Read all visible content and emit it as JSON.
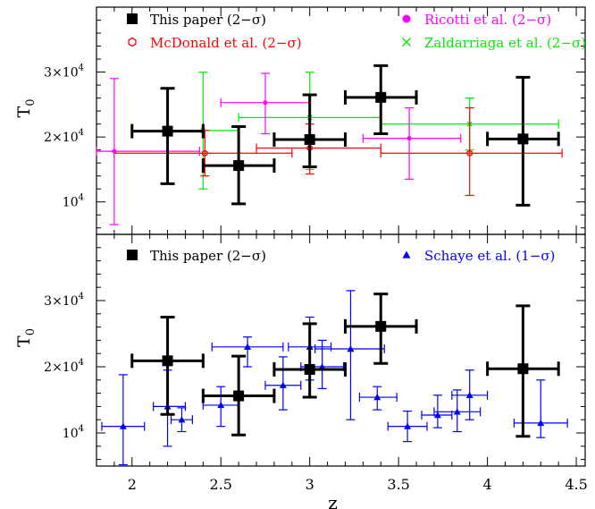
{
  "chart_data": [
    {
      "type": "scatter",
      "panel": "top",
      "ylabel_main": "T",
      "ylabel_sub": "0",
      "xlim": [
        1.8,
        4.55
      ],
      "ylim": [
        5000,
        40000
      ],
      "y_ticks": [
        {
          "value": 10000,
          "mant": "10",
          "exp": "4"
        },
        {
          "value": 20000,
          "mant": "2×10",
          "exp": "4"
        },
        {
          "value": 30000,
          "mant": "3×10",
          "exp": "4"
        }
      ],
      "legend": [
        {
          "label": "This paper (2−σ)",
          "color": "#000000",
          "marker": "square"
        },
        {
          "label": "Ricotti et al. (2−σ)",
          "color": "#ff00ff",
          "marker": "circle"
        },
        {
          "label": "McDonald et al. (2−σ)",
          "color": "#ff0000",
          "marker": "hexagon"
        },
        {
          "label": "Zaldarriaga et al. (2−σ)",
          "color": "#00ee00",
          "marker": "cross"
        }
      ],
      "series": [
        {
          "name": "Zaldarriaga et al. (2−σ)",
          "marker": "cross",
          "color": "#00ee00",
          "lw": 1.2,
          "size": 5,
          "points": [
            {
              "x": 2.4,
              "y": 21000,
              "xerr": [
                2.2,
                2.6
              ],
              "yerr": [
                12000,
                30000
              ]
            },
            {
              "x": 3.0,
              "y": 23000,
              "xerr": [
                2.6,
                3.4
              ],
              "yerr": [
                15000,
                30000
              ]
            },
            {
              "x": 3.9,
              "y": 22000,
              "xerr": [
                3.4,
                4.4
              ],
              "yerr": [
                18000,
                26000
              ]
            }
          ]
        },
        {
          "name": "McDonald et al. (2−σ)",
          "marker": "hexagon",
          "color": "#ff0000",
          "lw": 1.2,
          "size": 6,
          "points": [
            {
              "x": 2.41,
              "y": 17500,
              "xerr": [
                1.9,
                2.9
              ],
              "yerr": [
                14000,
                21000
              ]
            },
            {
              "x": 3.0,
              "y": 18300,
              "xerr": [
                2.7,
                3.4
              ],
              "yerr": [
                14300,
                22000
              ]
            },
            {
              "x": 3.9,
              "y": 17500,
              "xerr": [
                3.4,
                4.42
              ],
              "yerr": [
                11000,
                24500
              ]
            }
          ]
        },
        {
          "name": "Ricotti et al. (2−σ)",
          "marker": "circle",
          "color": "#ff00ff",
          "lw": 1.2,
          "size": 5,
          "points": [
            {
              "x": 1.9,
              "y": 17800,
              "xerr": [
                1.8,
                2.38
              ],
              "yerr": [
                6500,
                29000
              ]
            },
            {
              "x": 2.75,
              "y": 25300,
              "xerr": [
                2.5,
                3.0
              ],
              "yerr": [
                20500,
                29800
              ]
            },
            {
              "x": 3.56,
              "y": 19800,
              "xerr": [
                3.3,
                3.85
              ],
              "yerr": [
                13500,
                24500
              ]
            }
          ]
        },
        {
          "name": "This paper (2−σ)",
          "marker": "square",
          "color": "#000000",
          "lw": 3,
          "size": 12,
          "points": [
            {
              "x": 2.2,
              "y": 20900,
              "xerr": [
                2.0,
                2.4
              ],
              "yerr": [
                12800,
                27500
              ]
            },
            {
              "x": 2.6,
              "y": 15600,
              "xerr": [
                2.4,
                2.8
              ],
              "yerr": [
                9700,
                21600
              ]
            },
            {
              "x": 3.0,
              "y": 19600,
              "xerr": [
                2.8,
                3.2
              ],
              "yerr": [
                15400,
                26500
              ]
            },
            {
              "x": 3.4,
              "y": 26100,
              "xerr": [
                3.2,
                3.6
              ],
              "yerr": [
                20500,
                31000
              ]
            },
            {
              "x": 4.2,
              "y": 19700,
              "xerr": [
                4.0,
                4.4
              ],
              "yerr": [
                9500,
                29200
              ]
            }
          ]
        }
      ]
    },
    {
      "type": "scatter",
      "panel": "bottom",
      "xlabel": "z",
      "ylabel_main": "T",
      "ylabel_sub": "0",
      "xlim": [
        1.8,
        4.55
      ],
      "ylim": [
        5000,
        40000
      ],
      "x_ticks": [
        "2",
        "2.5",
        "3",
        "3.5",
        "4",
        "4.5"
      ],
      "y_ticks": [
        {
          "value": 10000,
          "mant": "10",
          "exp": "4"
        },
        {
          "value": 20000,
          "mant": "2×10",
          "exp": "4"
        },
        {
          "value": 30000,
          "mant": "3×10",
          "exp": "4"
        }
      ],
      "legend": [
        {
          "label": "This paper (2−σ)",
          "color": "#000000",
          "marker": "square"
        },
        {
          "label": "Schaye et al. (1−σ)",
          "color": "#0000ff",
          "marker": "triangle"
        }
      ],
      "series": [
        {
          "name": "Schaye et al. (1−σ)",
          "marker": "triangle",
          "color": "#0000ff",
          "lw": 1.2,
          "size": 8,
          "points": [
            {
              "x": 1.95,
              "y": 11000,
              "xerr": [
                1.83,
                2.07
              ],
              "yerr": [
                5200,
                18800
              ]
            },
            {
              "x": 2.2,
              "y": 14000,
              "xerr": [
                2.12,
                2.3
              ],
              "yerr": [
                8000,
                19500
              ]
            },
            {
              "x": 2.28,
              "y": 12000,
              "xerr": [
                2.22,
                2.34
              ],
              "yerr": [
                10200,
                13800
              ]
            },
            {
              "x": 2.5,
              "y": 14200,
              "xerr": [
                2.4,
                2.6
              ],
              "yerr": [
                11000,
                17000
              ]
            },
            {
              "x": 2.65,
              "y": 23000,
              "xerr": [
                2.45,
                2.85
              ],
              "yerr": [
                20000,
                24500
              ]
            },
            {
              "x": 2.85,
              "y": 17200,
              "xerr": [
                2.75,
                2.95
              ],
              "yerr": [
                13500,
                21500
              ]
            },
            {
              "x": 3.0,
              "y": 23000,
              "xerr": [
                2.88,
                3.12
              ],
              "yerr": [
                18000,
                27500
              ]
            },
            {
              "x": 3.07,
              "y": 20000,
              "xerr": [
                2.95,
                3.19
              ],
              "yerr": [
                16700,
                24000
              ]
            },
            {
              "x": 3.23,
              "y": 22700,
              "xerr": [
                3.03,
                3.42
              ],
              "yerr": [
                12000,
                31500
              ]
            },
            {
              "x": 3.38,
              "y": 15400,
              "xerr": [
                3.28,
                3.49
              ],
              "yerr": [
                13500,
                17000
              ]
            },
            {
              "x": 3.55,
              "y": 11000,
              "xerr": [
                3.44,
                3.66
              ],
              "yerr": [
                8700,
                13300
              ]
            },
            {
              "x": 3.72,
              "y": 12700,
              "xerr": [
                3.63,
                3.8
              ],
              "yerr": [
                10800,
                15700
              ]
            },
            {
              "x": 3.83,
              "y": 13200,
              "xerr": [
                3.7,
                3.96
              ],
              "yerr": [
                10200,
                16500
              ]
            },
            {
              "x": 3.9,
              "y": 15700,
              "xerr": [
                3.8,
                4.0
              ],
              "yerr": [
                12000,
                19500
              ]
            },
            {
              "x": 4.3,
              "y": 11500,
              "xerr": [
                4.15,
                4.45
              ],
              "yerr": [
                9300,
                18000
              ]
            }
          ]
        },
        {
          "name": "This paper (2−σ)",
          "marker": "square",
          "color": "#000000",
          "lw": 3,
          "size": 12,
          "points": [
            {
              "x": 2.2,
              "y": 20900,
              "xerr": [
                2.0,
                2.4
              ],
              "yerr": [
                12800,
                27500
              ]
            },
            {
              "x": 2.6,
              "y": 15600,
              "xerr": [
                2.4,
                2.8
              ],
              "yerr": [
                9700,
                21600
              ]
            },
            {
              "x": 3.0,
              "y": 19600,
              "xerr": [
                2.8,
                3.2
              ],
              "yerr": [
                15400,
                26500
              ]
            },
            {
              "x": 3.4,
              "y": 26100,
              "xerr": [
                3.2,
                3.6
              ],
              "yerr": [
                20500,
                31000
              ]
            },
            {
              "x": 4.2,
              "y": 19700,
              "xerr": [
                4.0,
                4.4
              ],
              "yerr": [
                9500,
                29200
              ]
            }
          ]
        }
      ]
    }
  ]
}
